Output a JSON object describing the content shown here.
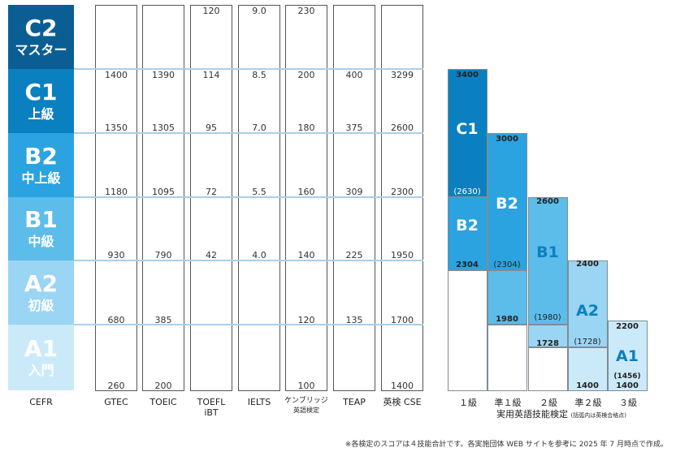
{
  "cefr": {
    "label": "CEFR",
    "levels": [
      {
        "code": "C2",
        "sub": "マスター",
        "color": "#0b5e94"
      },
      {
        "code": "C1",
        "sub": "上級",
        "color": "#0a80c0"
      },
      {
        "code": "B2",
        "sub": "中上級",
        "color": "#2aa3e0"
      },
      {
        "code": "B1",
        "sub": "中級",
        "color": "#5cbcea"
      },
      {
        "code": "A2",
        "sub": "初級",
        "color": "#9ad5f3"
      },
      {
        "code": "A1",
        "sub": "入門",
        "color": "#cbeaf9"
      }
    ]
  },
  "tests": [
    {
      "label": "GTEC",
      "label2": "",
      "values": [
        "",
        "1400",
        "1350",
        "1180",
        "930",
        "680",
        "260"
      ]
    },
    {
      "label": "TOEIC",
      "label2": "",
      "values": [
        "",
        "1390",
        "1305",
        "1095",
        "790",
        "385",
        "200"
      ]
    },
    {
      "label": "TOEFL",
      "label2": "iBT",
      "values": [
        "120",
        "114",
        "95",
        "72",
        "42",
        "",
        ""
      ]
    },
    {
      "label": "IELTS",
      "label2": "",
      "values": [
        "9.0",
        "8.5",
        "7.0",
        "5.5",
        "4.0",
        "",
        ""
      ]
    },
    {
      "label": "ケンブリッジ",
      "label2": "英語検定",
      "values": [
        "230",
        "200",
        "180",
        "160",
        "140",
        "120",
        "100"
      ]
    },
    {
      "label": "TEAP",
      "label2": "",
      "values": [
        "",
        "400",
        "375",
        "309",
        "225",
        "135",
        ""
      ]
    },
    {
      "label": "英検 CSE",
      "label2": "",
      "values": [
        "",
        "3299",
        "2600",
        "2300",
        "1950",
        "1700",
        "1400"
      ]
    }
  ],
  "eiken": {
    "title": "実用英語技能検定",
    "note": "(括弧内は英検合格点)",
    "grades": [
      {
        "grade": "１級",
        "top": "3400",
        "label_top": "C1",
        "label_bottom": "B2",
        "mid": "(2630)",
        "bottom": "2304"
      },
      {
        "grade": "準１級",
        "top": "3000",
        "label": "B2",
        "mid": "(2304)",
        "bottom": "1980"
      },
      {
        "grade": "２級",
        "top": "2600",
        "label": "B1",
        "mid": "(1980)",
        "bottom": "1728"
      },
      {
        "grade": "準２級",
        "top": "2400",
        "label": "A2",
        "mid": "(1728)",
        "bottom": "1400"
      },
      {
        "grade": "３級",
        "top": "2200",
        "label": "A1",
        "mid": "(1456)",
        "bottom": "1400"
      }
    ]
  },
  "footnote": "※各検定のスコアは４技能合計です。各実施団体 WEB サイトを参考に 2025 年 7 月時点で作成。"
}
